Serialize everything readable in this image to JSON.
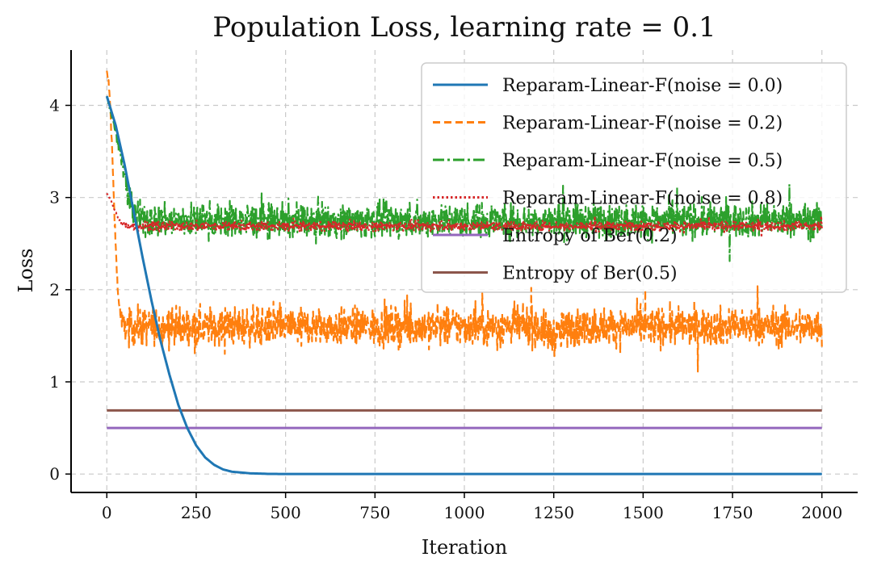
{
  "chart_data": {
    "type": "line",
    "title": "Population Loss, learning rate = 0.1",
    "xlabel": "Iteration",
    "ylabel": "Loss",
    "xlim": [
      -100,
      2100
    ],
    "ylim": [
      -0.2,
      4.6
    ],
    "xticks": [
      0,
      250,
      500,
      750,
      1000,
      1250,
      1500,
      1750,
      2000
    ],
    "yticks": [
      0,
      1,
      2,
      3,
      4
    ],
    "xtick_labels": [
      "0",
      "250",
      "500",
      "750",
      "1000",
      "1250",
      "1500",
      "1750",
      "2000"
    ],
    "ytick_labels": [
      "0",
      "1",
      "2",
      "3",
      "4"
    ],
    "grid": true,
    "legend_position": "top-right",
    "series": [
      {
        "name": "Reparam-Linear-F(noise = 0.0)",
        "color": "#1f77b4",
        "style": "solid",
        "x": [
          0,
          25,
          50,
          75,
          100,
          125,
          150,
          175,
          200,
          225,
          250,
          275,
          300,
          325,
          350,
          400,
          450,
          500,
          600,
          800,
          1000,
          1500,
          2000
        ],
        "y": [
          4.1,
          3.78,
          3.35,
          2.85,
          2.35,
          1.88,
          1.45,
          1.08,
          0.75,
          0.5,
          0.31,
          0.18,
          0.1,
          0.05,
          0.025,
          0.008,
          0.002,
          0.0,
          0.0,
          0.0,
          0.0,
          0.0,
          0.0
        ]
      },
      {
        "name": "Reparam-Linear-F(noise = 0.2)",
        "color": "#ff7f0e",
        "style": "dashed",
        "x": [
          0,
          5,
          10,
          15,
          20,
          25,
          30,
          35,
          40,
          45,
          50,
          60,
          80,
          100,
          200,
          300,
          400,
          500,
          600,
          700,
          800,
          900,
          1000,
          1100,
          1200,
          1250,
          1300,
          1400,
          1500,
          1600,
          1700,
          1800,
          1900,
          2000
        ],
        "y": [
          4.35,
          4.25,
          3.95,
          3.5,
          2.95,
          2.45,
          2.05,
          1.82,
          1.7,
          1.63,
          1.6,
          1.6,
          1.6,
          1.6,
          1.6,
          1.6,
          1.6,
          1.6,
          1.6,
          1.6,
          1.6,
          1.6,
          1.6,
          1.6,
          1.6,
          1.5,
          1.6,
          1.6,
          1.6,
          1.6,
          1.6,
          1.6,
          1.6,
          1.6
        ],
        "noise_amplitude": 0.2
      },
      {
        "name": "Reparam-Linear-F(noise = 0.5)",
        "color": "#2ca02c",
        "style": "dashdot",
        "x": [
          0,
          10,
          20,
          30,
          40,
          50,
          60,
          70,
          80,
          90,
          100,
          200,
          400,
          600,
          800,
          1000,
          1200,
          1400,
          1600,
          1800,
          2000
        ],
        "y": [
          4.1,
          3.95,
          3.8,
          3.62,
          3.45,
          3.25,
          3.05,
          2.9,
          2.8,
          2.76,
          2.75,
          2.75,
          2.75,
          2.75,
          2.75,
          2.75,
          2.75,
          2.75,
          2.75,
          2.75,
          2.75
        ],
        "noise_amplitude": 0.18
      },
      {
        "name": "Reparam-Linear-F(noise = 0.8)",
        "color": "#d62728",
        "style": "dotted",
        "x": [
          0,
          10,
          20,
          30,
          40,
          50,
          60,
          80,
          100,
          200,
          500,
          1000,
          1500,
          2000
        ],
        "y": [
          3.05,
          2.98,
          2.88,
          2.79,
          2.73,
          2.7,
          2.69,
          2.69,
          2.69,
          2.69,
          2.69,
          2.69,
          2.69,
          2.69
        ],
        "noise_amplitude": 0.05
      },
      {
        "name": "Entropy of Ber(0.2)",
        "color": "#9467bd",
        "style": "solid",
        "x": [
          0,
          2000
        ],
        "y": [
          0.5,
          0.5
        ]
      },
      {
        "name": "Entropy of Ber(0.5)",
        "color": "#8c564b",
        "style": "solid",
        "x": [
          0,
          2000
        ],
        "y": [
          0.69,
          0.69
        ]
      }
    ]
  }
}
